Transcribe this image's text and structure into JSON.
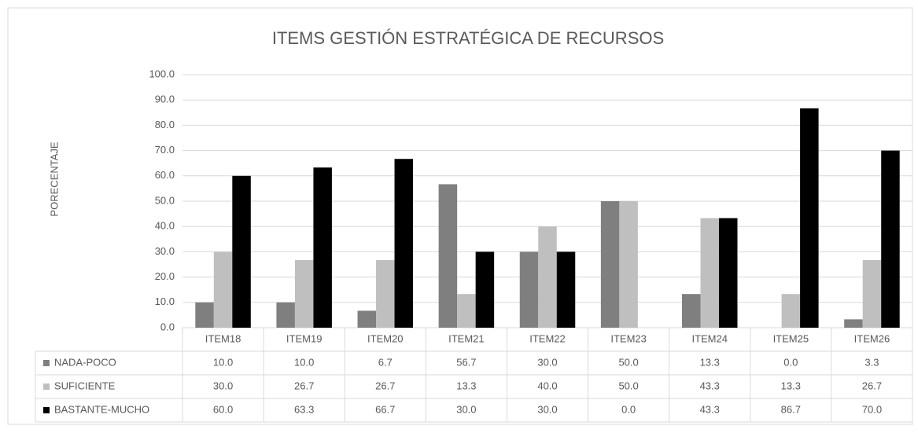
{
  "chart_data": {
    "type": "bar",
    "title": "ITEMS GESTIÓN ESTRATÉGICA DE RECURSOS",
    "y_label": "PORECENTAJE",
    "categories": [
      "ITEM18",
      "ITEM19",
      "ITEM20",
      "ITEM21",
      "ITEM22",
      "ITEM23",
      "ITEM24",
      "ITEM25",
      "ITEM26"
    ],
    "series": [
      {
        "name": "NADA-POCO",
        "color": "#7f7f7f",
        "values": [
          10,
          10,
          6.7,
          56.7,
          30,
          50,
          13.3,
          0,
          3.3
        ],
        "value_labels": [
          "10.0",
          "10.0",
          "6.7",
          "56.7",
          "30.0",
          "50.0",
          "13.3",
          "0.0",
          "3.3"
        ]
      },
      {
        "name": "SUFICIENTE",
        "color": "#bfbfbf",
        "values": [
          30,
          26.7,
          26.7,
          13.3,
          40,
          50,
          43.3,
          13.3,
          26.7
        ],
        "value_labels": [
          "30.0",
          "26.7",
          "26.7",
          "13.3",
          "40.0",
          "50.0",
          "43.3",
          "13.3",
          "26.7"
        ]
      },
      {
        "name": "BASTANTE-MUCHO",
        "color": "#000000",
        "values": [
          60,
          63.3,
          66.7,
          30,
          30,
          0,
          43.3,
          86.7,
          70
        ],
        "value_labels": [
          "60.0",
          "63.3",
          "66.7",
          "30.0",
          "30.0",
          "0.0",
          "43.3",
          "86.7",
          "70.0"
        ]
      }
    ],
    "ylim": [
      0,
      100
    ],
    "yticks": [
      {
        "value": 0,
        "label": "0.0"
      },
      {
        "value": 10,
        "label": "10.0"
      },
      {
        "value": 20,
        "label": "20.0"
      },
      {
        "value": 30,
        "label": "30.0"
      },
      {
        "value": 40,
        "label": "40.0"
      },
      {
        "value": 50,
        "label": "50.0"
      },
      {
        "value": 60,
        "label": "60.0"
      },
      {
        "value": 70,
        "label": "70.0"
      },
      {
        "value": 80,
        "label": "80.0"
      },
      {
        "value": 90,
        "label": "90.0"
      },
      {
        "value": 100,
        "label": "100.0"
      }
    ],
    "grid": true
  }
}
